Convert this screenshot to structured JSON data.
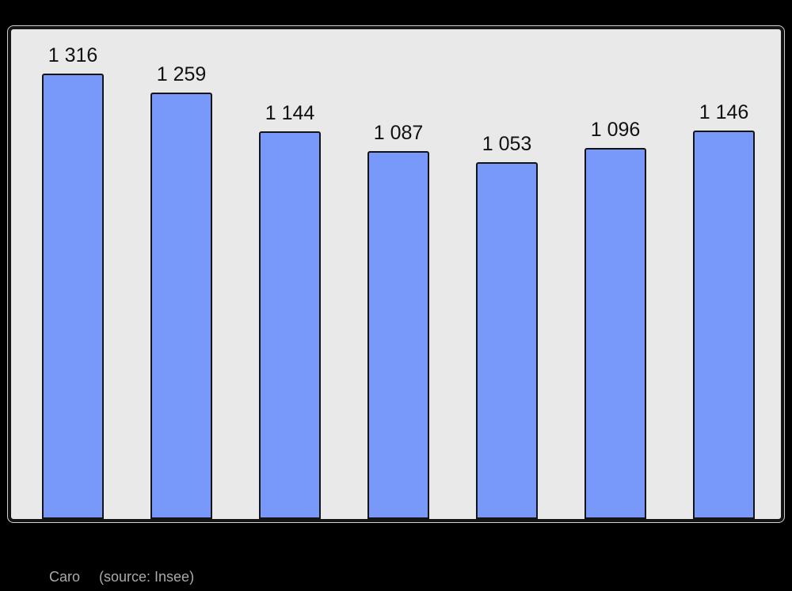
{
  "page": {
    "background": "#000000"
  },
  "colors": {
    "frame_bg": "#e9e9e9",
    "frame_border": "#141414",
    "bar_fill": "#7899fa",
    "bar_border": "#141414",
    "label_text": "#111111",
    "caption_text": "#aaaaaa"
  },
  "caption": {
    "name": "Caro",
    "source": "(source: Insee)"
  },
  "chart_data": {
    "type": "bar",
    "values": [
      1316,
      1259,
      1144,
      1087,
      1053,
      1096,
      1146
    ],
    "value_labels": [
      "1 316",
      "1 259",
      "1 144",
      "1 087",
      "1 053",
      "1 096",
      "1 146"
    ],
    "title": "",
    "xlabel": "",
    "ylabel": "",
    "ylim": [
      0,
      1446
    ],
    "baseline": 0,
    "grid": false,
    "legend": false,
    "bar_count": 7,
    "data_labels_position": "above-bars"
  }
}
